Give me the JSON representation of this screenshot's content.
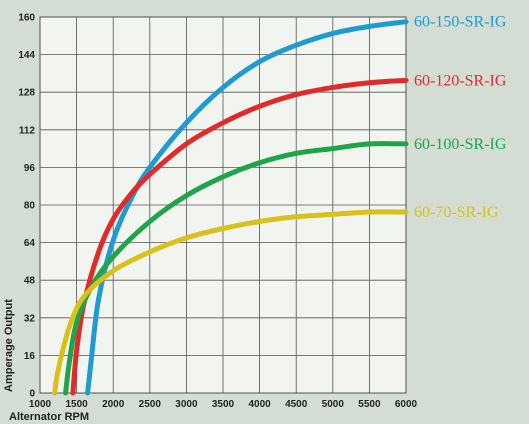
{
  "chart_data": {
    "type": "line",
    "xlabel": "Alternator RPM",
    "ylabel": "Amperage Output",
    "xlim": [
      1000,
      6000
    ],
    "ylim": [
      0,
      160
    ],
    "x_ticks": [
      1000,
      1500,
      2000,
      2500,
      3000,
      3500,
      4000,
      4500,
      5000,
      5500,
      6000
    ],
    "y_ticks": [
      0,
      16,
      32,
      48,
      64,
      80,
      96,
      112,
      128,
      144,
      160
    ],
    "grid": true,
    "legend": "right",
    "series": [
      {
        "name": "60-150-SR-IG",
        "color": "#1e9bd0",
        "points": [
          [
            1650,
            0
          ],
          [
            1700,
            14
          ],
          [
            1800,
            40
          ],
          [
            2000,
            65
          ],
          [
            2250,
            83
          ],
          [
            2500,
            96
          ],
          [
            3000,
            115
          ],
          [
            3500,
            130
          ],
          [
            4000,
            141
          ],
          [
            4500,
            148
          ],
          [
            5000,
            153
          ],
          [
            5500,
            156
          ],
          [
            6000,
            158
          ]
        ]
      },
      {
        "name": "60-120-SR-IG",
        "color": "#e02b2b",
        "points": [
          [
            1450,
            0
          ],
          [
            1500,
            18
          ],
          [
            1600,
            38
          ],
          [
            1800,
            60
          ],
          [
            2000,
            74
          ],
          [
            2250,
            85
          ],
          [
            2500,
            93
          ],
          [
            3000,
            106
          ],
          [
            3500,
            115
          ],
          [
            4000,
            122
          ],
          [
            4500,
            127
          ],
          [
            5000,
            130
          ],
          [
            5500,
            132
          ],
          [
            6000,
            133
          ]
        ]
      },
      {
        "name": "60-100-SR-IG",
        "color": "#1fa44a",
        "points": [
          [
            1350,
            0
          ],
          [
            1400,
            13
          ],
          [
            1500,
            30
          ],
          [
            1700,
            45
          ],
          [
            2000,
            58
          ],
          [
            2500,
            73
          ],
          [
            3000,
            84
          ],
          [
            3500,
            92
          ],
          [
            4000,
            98
          ],
          [
            4500,
            102
          ],
          [
            5000,
            104
          ],
          [
            5500,
            106
          ],
          [
            6000,
            106
          ]
        ]
      },
      {
        "name": "60-70-SR-IG",
        "color": "#d8c11a",
        "points": [
          [
            1200,
            0
          ],
          [
            1250,
            10
          ],
          [
            1400,
            28
          ],
          [
            1600,
            41
          ],
          [
            2000,
            52
          ],
          [
            2500,
            60
          ],
          [
            3000,
            66
          ],
          [
            3500,
            70
          ],
          [
            4000,
            73
          ],
          [
            4500,
            75
          ],
          [
            5000,
            76
          ],
          [
            5500,
            77
          ],
          [
            6000,
            77
          ]
        ]
      }
    ]
  }
}
